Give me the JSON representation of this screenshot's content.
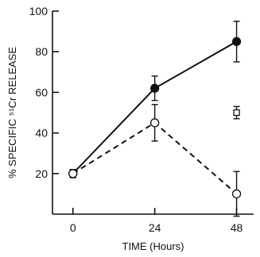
{
  "chart_data": {
    "type": "line",
    "title": "",
    "xlabel": "TIME (Hours)",
    "ylabel": "% SPECIFIC ⁵¹Cr RELEASE",
    "xlim": [
      -6,
      53
    ],
    "ylim": [
      0,
      100
    ],
    "x_ticks": [
      0,
      24,
      48
    ],
    "y_ticks": [
      20,
      40,
      60,
      80,
      100
    ],
    "x_tick_labels": [
      "0",
      "24",
      "48"
    ],
    "y_tick_labels": [
      "20",
      "40",
      "60",
      "80",
      "100"
    ],
    "grid": false,
    "legend": "none",
    "series": [
      {
        "marker": "filled-circle",
        "line_style": "solid",
        "color": "#111111",
        "x": [
          0,
          24,
          48
        ],
        "y": [
          20,
          62,
          85
        ],
        "error": [
          2,
          6,
          10
        ]
      },
      {
        "marker": "open-circle",
        "line_style": "dashed",
        "color": "#111111",
        "x": [
          0,
          24,
          48
        ],
        "y": [
          20,
          45,
          10
        ],
        "error": [
          2,
          9,
          11
        ]
      },
      {
        "marker": "open-square",
        "line_style": "none",
        "color": "#111111",
        "x": [
          48
        ],
        "y": [
          50
        ],
        "error": [
          3
        ]
      }
    ]
  }
}
